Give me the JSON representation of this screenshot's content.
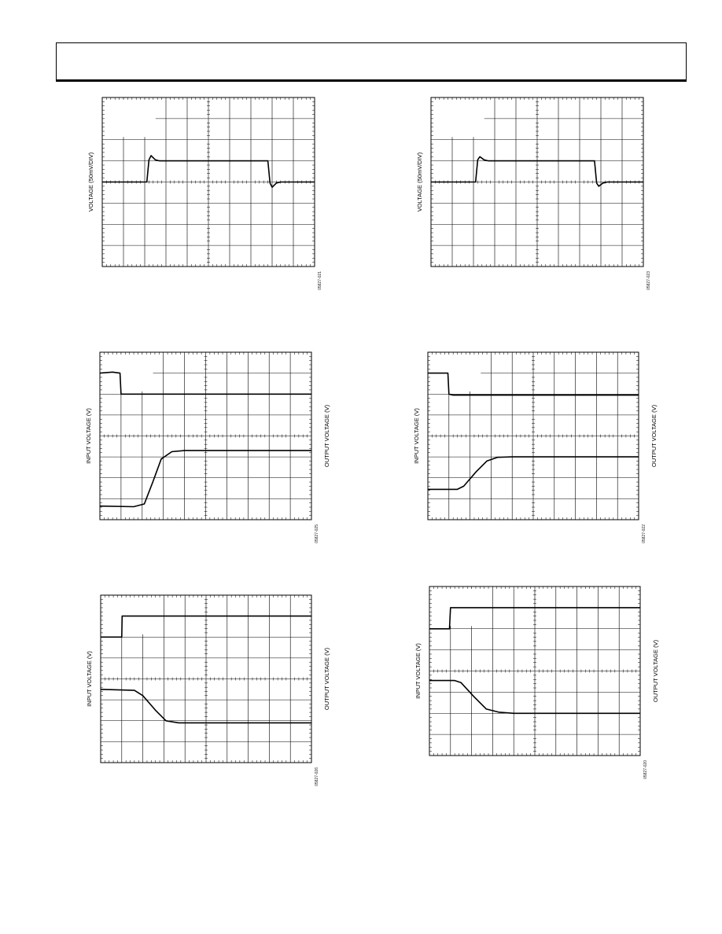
{
  "header": {},
  "charts": [
    {
      "id": "scope-1",
      "chart_data": {
        "type": "line",
        "y_left_label": "VOLTAGE (50mV/DIV)",
        "y_right_label": "",
        "figure_id": "05827-021",
        "grid": true,
        "divisions": {
          "x": 10,
          "y": 8
        },
        "series": [
          {
            "values": [
              [
                0,
                4
              ],
              [
                2.1,
                4
              ],
              [
                2.2,
                5.05
              ],
              [
                2.3,
                5.25
              ],
              [
                2.5,
                5.05
              ],
              [
                2.7,
                5
              ],
              [
                7.8,
                5
              ],
              [
                7.9,
                3.95
              ],
              [
                8.0,
                3.75
              ],
              [
                8.2,
                3.95
              ],
              [
                8.4,
                4
              ],
              [
                10,
                4
              ]
            ]
          }
        ]
      }
    },
    {
      "id": "scope-2",
      "chart_data": {
        "type": "line",
        "y_left_label": "VOLTAGE (50mV/DIV)",
        "y_right_label": "",
        "figure_id": "05827-023",
        "grid": true,
        "divisions": {
          "x": 10,
          "y": 8
        },
        "series": [
          {
            "values": [
              [
                0,
                4
              ],
              [
                2.1,
                4
              ],
              [
                2.2,
                5.05
              ],
              [
                2.3,
                5.2
              ],
              [
                2.5,
                5.05
              ],
              [
                2.7,
                5
              ],
              [
                7.7,
                5
              ],
              [
                7.8,
                3.95
              ],
              [
                7.9,
                3.8
              ],
              [
                8.1,
                3.95
              ],
              [
                8.3,
                4
              ],
              [
                10,
                4
              ]
            ]
          }
        ]
      }
    },
    {
      "id": "scope-3",
      "chart_data": {
        "type": "line",
        "y_left_label": "INPUT VOLTAGE (V)",
        "y_right_label": "OUTPUT VOLTAGE (V)",
        "figure_id": "05827-025",
        "grid": true,
        "divisions": {
          "x": 10,
          "y": 8
        },
        "series": [
          {
            "values": [
              [
                0,
                7
              ],
              [
                0.6,
                7.05
              ],
              [
                0.95,
                7
              ],
              [
                1,
                6
              ],
              [
                10,
                6
              ]
            ]
          },
          {
            "values": [
              [
                0,
                0.65
              ],
              [
                1.6,
                0.62
              ],
              [
                2.1,
                0.75
              ],
              [
                2.5,
                1.8
              ],
              [
                2.9,
                2.9
              ],
              [
                3.4,
                3.25
              ],
              [
                4,
                3.3
              ],
              [
                10,
                3.3
              ]
            ]
          }
        ]
      }
    },
    {
      "id": "scope-4",
      "chart_data": {
        "type": "line",
        "y_left_label": "INPUT VOLTAGE (V)",
        "y_right_label": "OUTPUT VOLTAGE (V)",
        "figure_id": "05827-022",
        "grid": true,
        "divisions": {
          "x": 10,
          "y": 8
        },
        "series": [
          {
            "values": [
              [
                0,
                7
              ],
              [
                0.95,
                7
              ],
              [
                1,
                6
              ],
              [
                1.2,
                5.95
              ],
              [
                10,
                5.95
              ]
            ]
          },
          {
            "values": [
              [
                0,
                1.45
              ],
              [
                1.4,
                1.45
              ],
              [
                1.7,
                1.6
              ],
              [
                2.3,
                2.3
              ],
              [
                2.8,
                2.8
              ],
              [
                3.3,
                2.98
              ],
              [
                4,
                3
              ],
              [
                10,
                3
              ]
            ]
          }
        ]
      }
    },
    {
      "id": "scope-5",
      "chart_data": {
        "type": "line",
        "y_left_label": "INPUT VOLTAGE (V)",
        "y_right_label": "OUTPUT VOLTAGE (V)",
        "figure_id": "05827-026",
        "grid": true,
        "divisions": {
          "x": 10,
          "y": 8
        },
        "series": [
          {
            "values": [
              [
                0,
                6
              ],
              [
                1,
                6
              ],
              [
                1.02,
                7
              ],
              [
                10,
                7
              ]
            ]
          },
          {
            "values": [
              [
                0,
                3.5
              ],
              [
                1.6,
                3.45
              ],
              [
                2,
                3.2
              ],
              [
                2.6,
                2.5
              ],
              [
                3.1,
                2
              ],
              [
                3.7,
                1.9
              ],
              [
                10,
                1.9
              ]
            ]
          }
        ]
      }
    },
    {
      "id": "scope-6",
      "chart_data": {
        "type": "line",
        "y_left_label": "INPUT VOLTAGE (V)",
        "y_right_label": "OUTPUT VOLTAGE (V)",
        "figure_id": "05827-020",
        "grid": true,
        "divisions": {
          "x": 10,
          "y": 8
        },
        "series": [
          {
            "values": [
              [
                0,
                6
              ],
              [
                0.95,
                6
              ],
              [
                1,
                7
              ],
              [
                10,
                7
              ]
            ]
          },
          {
            "values": [
              [
                0,
                3.55
              ],
              [
                1.2,
                3.55
              ],
              [
                1.5,
                3.45
              ],
              [
                2.1,
                2.8
              ],
              [
                2.7,
                2.2
              ],
              [
                3.3,
                2.05
              ],
              [
                4,
                2
              ],
              [
                10,
                2
              ]
            ]
          }
        ]
      }
    }
  ]
}
